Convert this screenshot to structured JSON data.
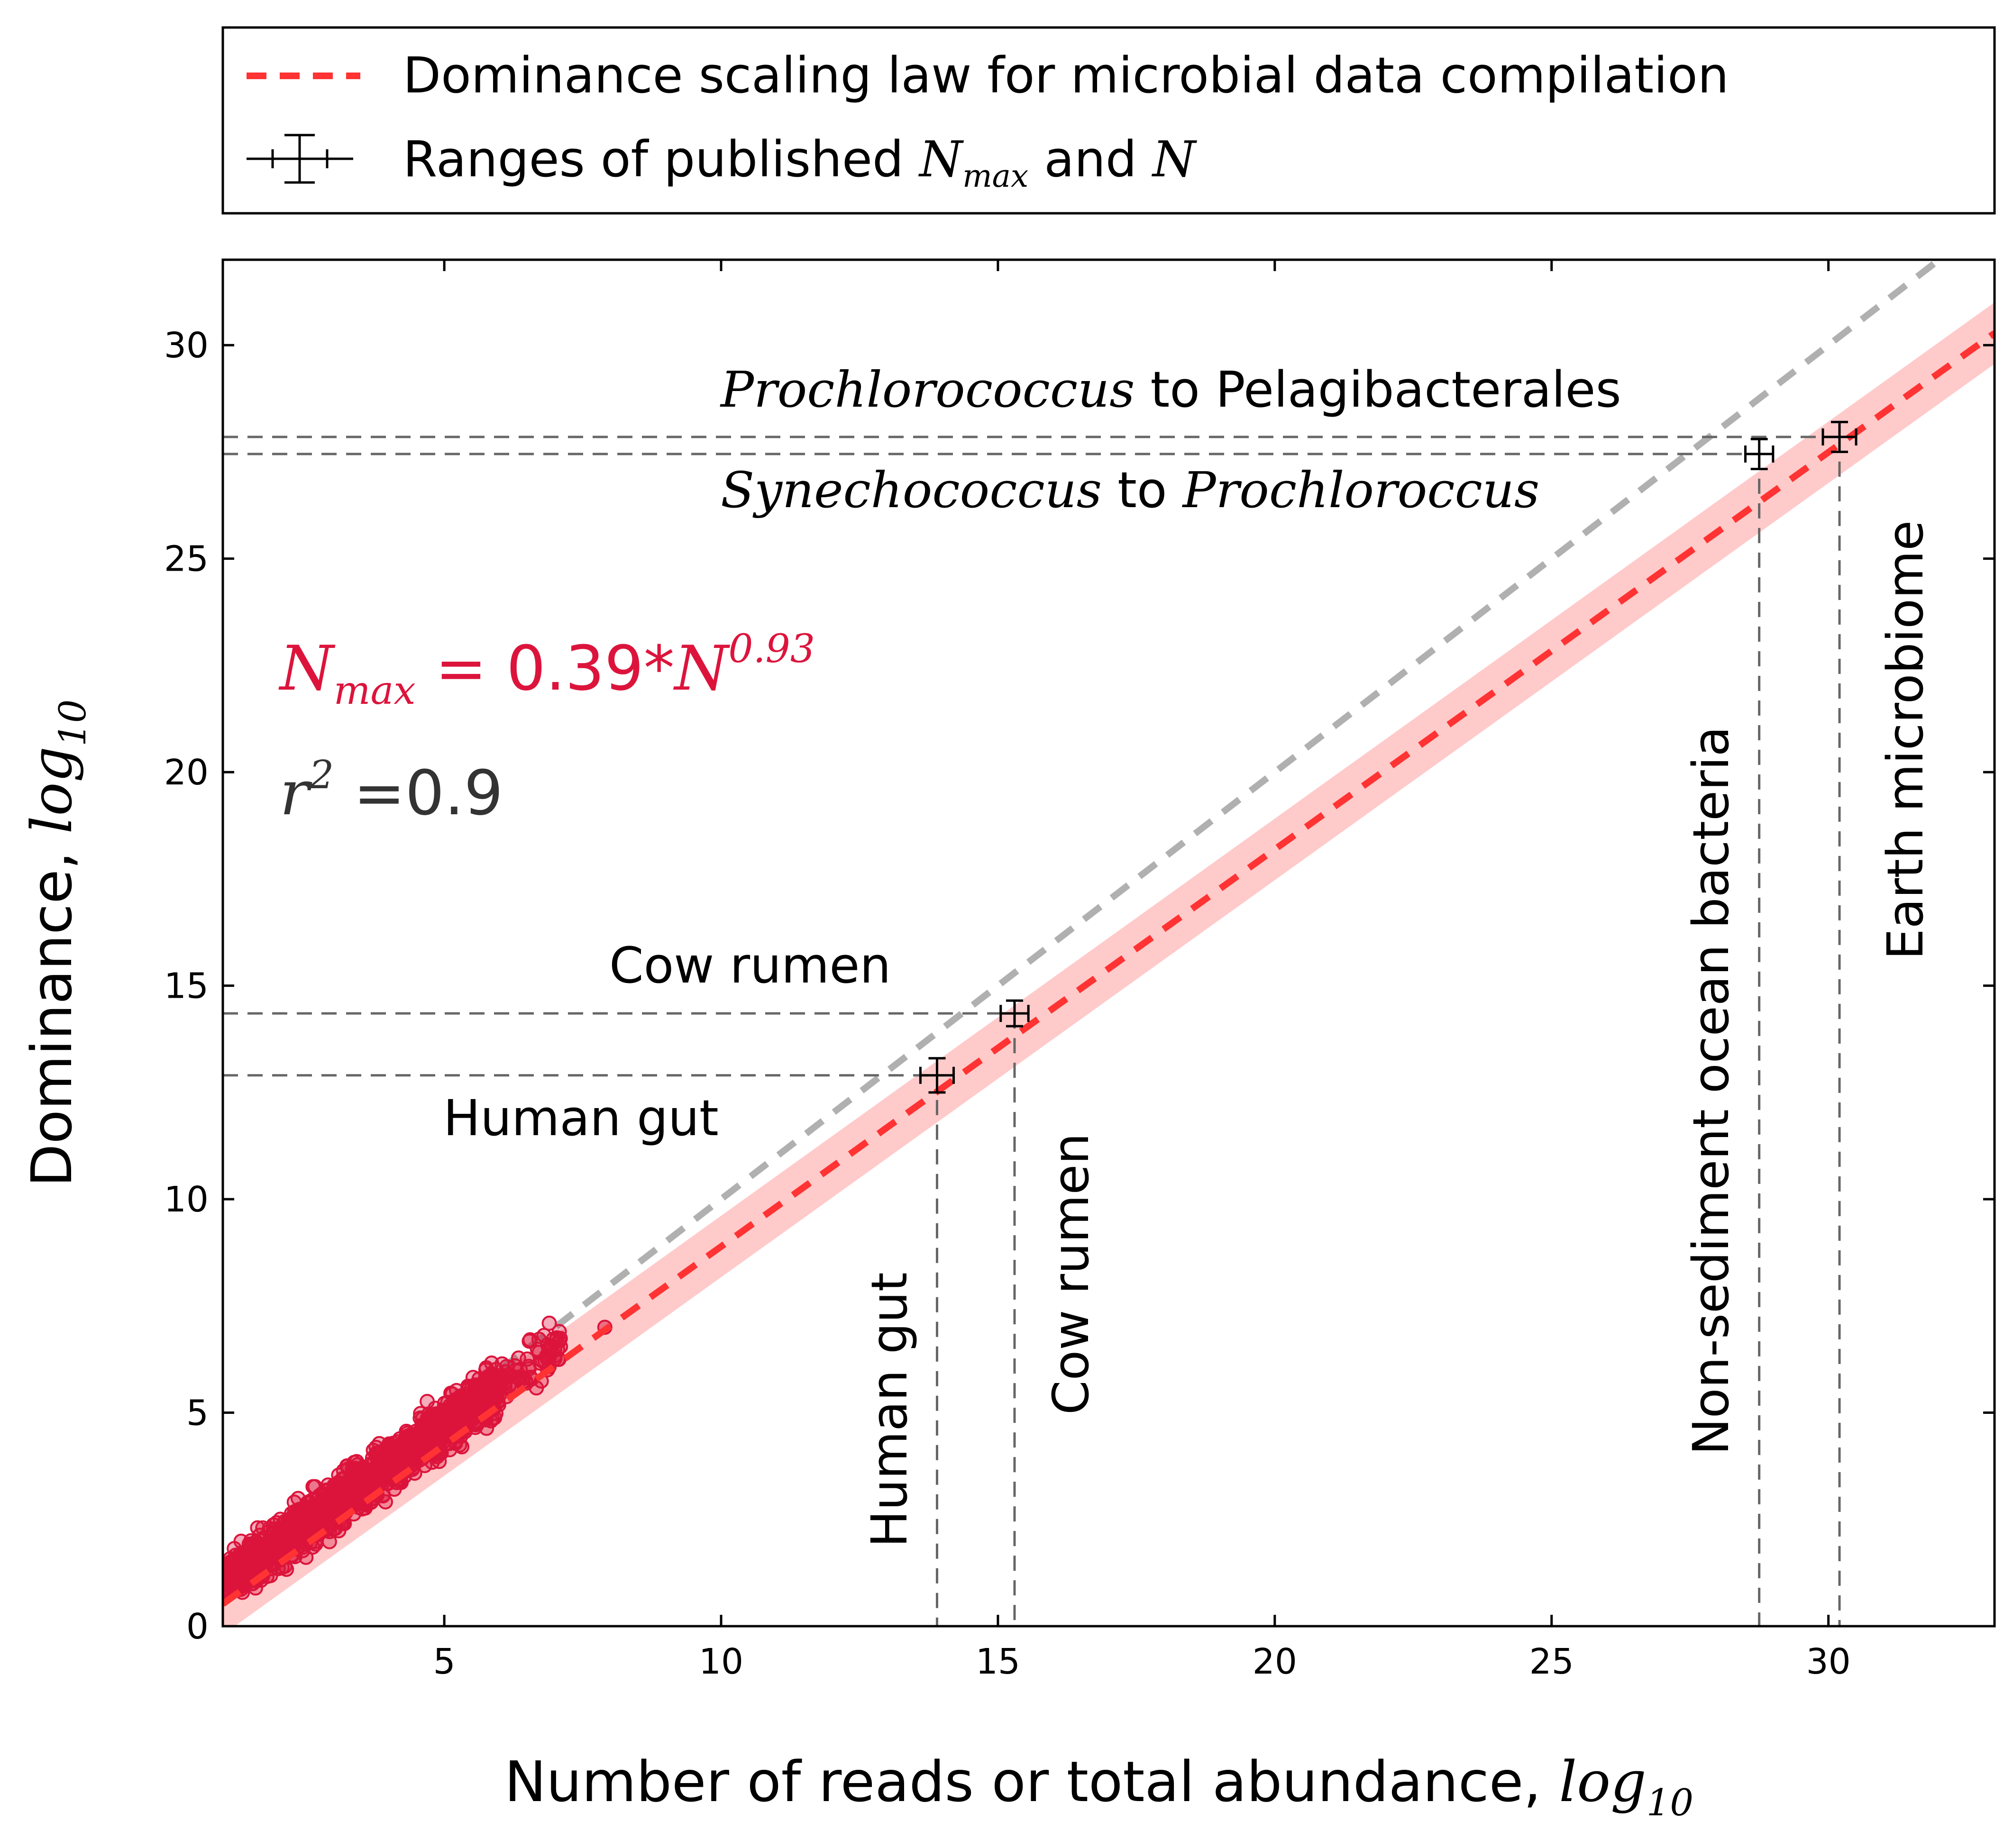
{
  "chart_data": {
    "type": "scatter",
    "xlabel": "Number of reads or total abundance,",
    "xlabel_unit": "log",
    "xlabel_unit_sub": "10",
    "ylabel": "Dominance,",
    "ylabel_unit": "log",
    "ylabel_unit_sub": "10",
    "xlim": [
      1,
      33
    ],
    "ylim": [
      0,
      32
    ],
    "xticks": [
      5,
      10,
      15,
      20,
      25,
      30
    ],
    "yticks": [
      0,
      5,
      10,
      15,
      20,
      25,
      30
    ],
    "grid": false,
    "legend_placement": "above-plot",
    "colors": {
      "points": "#dc143c",
      "fit_line": "#ff3333",
      "confidence_band": "#ffb3b3",
      "one_to_one": "#b0b0b0",
      "guides": "#666666",
      "equation": "#dc143c",
      "r2": "#333333"
    },
    "legend": {
      "fit_label": "Dominance scaling law for microbial data compilation",
      "range_label_prefix": "Ranges of published ",
      "range_label_nmax": "N",
      "range_label_nmax_sub": "max",
      "range_label_and": " and ",
      "range_label_n": "N"
    },
    "fit": {
      "coefficient": 0.39,
      "exponent": 0.93,
      "equation_lhs": "N",
      "equation_lhs_sub": "max",
      "equation_mid": " = 0.39*",
      "equation_var": "N",
      "equation_exp": "0.93",
      "r2_symbol": "r",
      "r2_exp": "2",
      "r2_value": " =0.9"
    },
    "one_to_one_line": {
      "x": [
        1,
        33
      ],
      "y": [
        1,
        33
      ]
    },
    "reference_points": [
      {
        "name": "Human gut",
        "x": 13.9,
        "y": 12.9,
        "xerr": 0.3,
        "yerr": 0.4
      },
      {
        "name": "Cow rumen",
        "x": 15.3,
        "y": 14.35,
        "xerr": 0.25,
        "yerr": 0.3
      },
      {
        "name": "Non-sediment ocean bacteria",
        "x": 28.75,
        "y": 27.45,
        "xerr": 0.25,
        "yerr": 0.35
      },
      {
        "name": "Earth microbiome",
        "x": 30.2,
        "y": 27.85,
        "xerr": 0.3,
        "yerr": 0.35
      }
    ],
    "annotations": {
      "prochloro_italic": "Prochlorococcus",
      "prochloro_rest": " to Pelagibacterales",
      "synecho_italic": "Synechococcus",
      "synecho_mid": " to ",
      "synecho_italic2": "Prochloroccus",
      "cow_rumen_h": "Cow rumen",
      "human_gut_h": "Human gut",
      "human_gut_v": "Human gut",
      "cow_rumen_v": "Cow rumen",
      "ocean_v": "Non-sediment ocean bacteria",
      "earth_v": "Earth microbiome"
    }
  }
}
